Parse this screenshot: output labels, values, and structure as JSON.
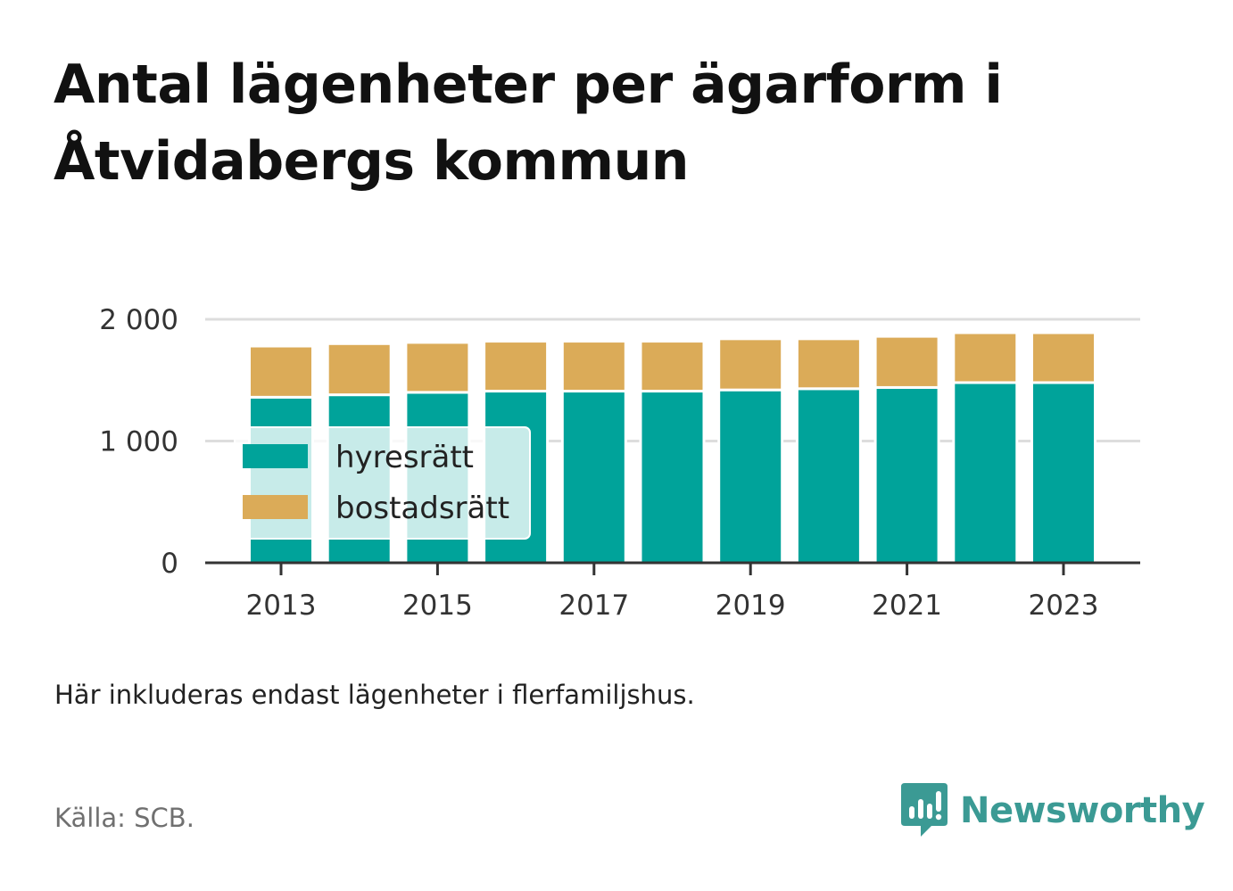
{
  "title": "Antal lägenheter per ägarform i Åtvidabergs kommun",
  "note": "Här inkluderas endast lägenheter i flerfamiljshus.",
  "source": "Källa: SCB.",
  "brand": {
    "name": "Newsworthy",
    "icon": "newsworthy-logo-icon",
    "color": "#3b9a94"
  },
  "chart_data": {
    "type": "bar",
    "stacked": true,
    "categories": [
      2013,
      2014,
      2015,
      2016,
      2017,
      2018,
      2019,
      2020,
      2021,
      2022,
      2023
    ],
    "x_tick_labels": [
      "2013",
      "2015",
      "2017",
      "2019",
      "2021",
      "2023"
    ],
    "y_ticks": [
      0,
      1000,
      2000
    ],
    "y_tick_labels": [
      "0",
      "1 000",
      "2 000"
    ],
    "ylim": [
      0,
      2000
    ],
    "grid": true,
    "legend_position": "inside-left",
    "series": [
      {
        "name": "hyresrätt",
        "color": "#00a39a",
        "values": [
          1360,
          1380,
          1400,
          1410,
          1410,
          1410,
          1420,
          1430,
          1440,
          1480,
          1480
        ]
      },
      {
        "name": "bostadsrätt",
        "color": "#dbab58",
        "values": [
          420,
          420,
          410,
          410,
          410,
          410,
          420,
          410,
          420,
          410,
          410
        ]
      }
    ]
  }
}
